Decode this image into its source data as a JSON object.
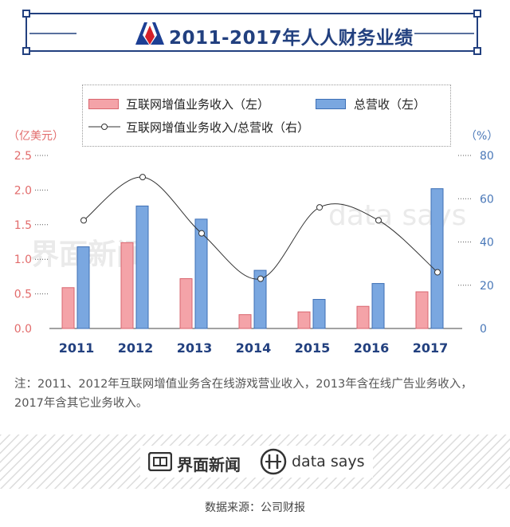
{
  "header": {
    "title": "2011-2017年人人财务业绩"
  },
  "legend": {
    "items": [
      {
        "label": "互联网增值业务收入（左）",
        "color": "#f4a3a8"
      },
      {
        "label": "总营收（左）",
        "color": "#7aa7e0"
      },
      {
        "label": "互联网增值业务收入/总营收（右）",
        "color": "#333333"
      }
    ]
  },
  "axes": {
    "left_unit": "（亿美元）",
    "right_unit": "（%）"
  },
  "chart_data": {
    "type": "bar",
    "categories": [
      "2011",
      "2012",
      "2013",
      "2014",
      "2015",
      "2016",
      "2017"
    ],
    "series": [
      {
        "name": "互联网增值业务收入（左）",
        "axis": "left",
        "kind": "bar",
        "color": "#f4a3a8",
        "values": [
          0.59,
          1.24,
          0.72,
          0.2,
          0.24,
          0.32,
          0.53
        ]
      },
      {
        "name": "总营收（左）",
        "axis": "left",
        "kind": "bar",
        "color": "#7aa7e0",
        "values": [
          1.18,
          1.77,
          1.58,
          0.84,
          0.42,
          0.65,
          2.02
        ]
      },
      {
        "name": "互联网增值业务收入/总营收（右）",
        "axis": "right",
        "kind": "line",
        "color": "#333333",
        "values": [
          50,
          70,
          44,
          23,
          56,
          50,
          26
        ]
      }
    ],
    "left_ticks": [
      "0.0",
      "0.5",
      "1.0",
      "1.5",
      "2.0",
      "2.5"
    ],
    "right_ticks": [
      "0",
      "20",
      "40",
      "60",
      "80"
    ],
    "ylim_left": [
      0,
      2.5
    ],
    "ylim_right": [
      0,
      80
    ],
    "grid": false,
    "left_color": "#e26b6b",
    "right_color": "#4a78b8",
    "x_label_color": "#22407f"
  },
  "note": "注：2011、2012年互联网增值业务含在线游戏营业收入，2013年含在线广告业务收入，2017年含其它业务收入。",
  "footer": {
    "brand_cn": "界面新闻",
    "brand_en": "data says",
    "source": "数据来源：公司财报"
  },
  "watermark": {
    "cn": "界面新闻",
    "en": "data says"
  }
}
